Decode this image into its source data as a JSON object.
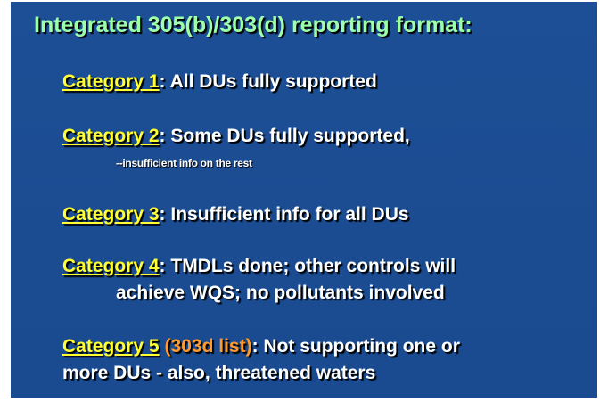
{
  "title": "Integrated 305(b)/303(d) reporting format:",
  "items": [
    {
      "label": "Category 1",
      "lines": [
        ": All DUs fully supported"
      ]
    },
    {
      "label": "Category 2",
      "lines": [
        ": Some DUs fully supported,"
      ],
      "note": "--insufficient info on the rest"
    },
    {
      "label": "Category 3",
      "lines": [
        ": Insufficient info for all DUs"
      ]
    },
    {
      "label": "Category 4",
      "lines": [
        ": TMDLs done; other controls will",
        "achieve WQS; no pollutants involved"
      ]
    },
    {
      "label": "Category 5",
      "tag": "(303d list)",
      "lines": [
        ": Not supporting one or",
        "more DUs - also, threatened waters"
      ]
    }
  ]
}
